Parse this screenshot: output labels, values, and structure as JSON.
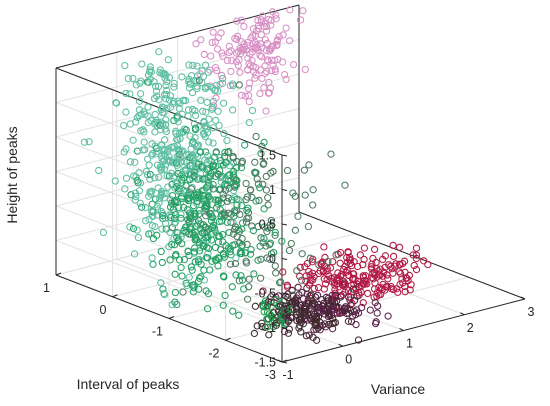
{
  "chart_data": {
    "type": "scatter",
    "projection": "3d",
    "title": "",
    "xlabel": "Variance",
    "ylabel": "Interval of peaks",
    "zlabel": "Height of peaks",
    "xlim": [
      -1,
      3
    ],
    "ylim": [
      -3,
      1
    ],
    "zlim": [
      -1.5,
      1.5
    ],
    "xticks": [
      "-1",
      "0",
      "1",
      "2",
      "3"
    ],
    "yticks": [
      "-3",
      "-2",
      "-1",
      "0",
      "1"
    ],
    "zticks": [
      "-1.5",
      "-1",
      "-0.5",
      "0",
      "0.5",
      "1",
      "1.5"
    ],
    "grid": true,
    "legend": "none",
    "marker": "open-circle",
    "series": [
      {
        "cluster": "upper-cyan-green",
        "color": "#5fbfa2",
        "center": {
          "x": -0.05,
          "y": -0.1,
          "z": 0.45
        },
        "spread": {
          "x": 0.35,
          "y": 0.35,
          "z": 0.75
        },
        "count": 420
      },
      {
        "cluster": "lower-green",
        "color": "#24a063",
        "center": {
          "x": -0.1,
          "y": -0.7,
          "z": -0.35
        },
        "spread": {
          "x": 0.3,
          "y": 0.4,
          "z": 0.55
        },
        "count": 320
      },
      {
        "cluster": "small-green-blob",
        "color": "#1f9d4f",
        "center": {
          "x": -0.6,
          "y": -2.45,
          "z": -1.05
        },
        "spread": {
          "x": 0.1,
          "y": 0.12,
          "z": 0.1
        },
        "count": 30
      },
      {
        "cluster": "pink",
        "color": "#d890c5",
        "center": {
          "x": 2.1,
          "y": 0.85,
          "z": 1.1
        },
        "spread": {
          "x": 0.35,
          "y": 0.1,
          "z": 0.3
        },
        "count": 150
      },
      {
        "cluster": "dark-brown",
        "color": "#3f2a2e",
        "center": {
          "x": 0.1,
          "y": -2.2,
          "z": -1.3
        },
        "spread": {
          "x": 0.3,
          "y": 0.25,
          "z": 0.12
        },
        "count": 130
      },
      {
        "cluster": "purple",
        "color": "#5a2048",
        "center": {
          "x": 0.5,
          "y": -2.1,
          "z": -1.35
        },
        "spread": {
          "x": 0.35,
          "y": 0.25,
          "z": 0.1
        },
        "count": 110
      },
      {
        "cluster": "crimson",
        "color": "#b21a46",
        "center": {
          "x": 1.5,
          "y": -1.6,
          "z": -1.25
        },
        "spread": {
          "x": 0.45,
          "y": 0.35,
          "z": 0.12
        },
        "count": 200
      },
      {
        "cluster": "transition-scatter",
        "color": "#4e7a62",
        "center": {
          "x": 0.35,
          "y": -1.0,
          "z": -0.3
        },
        "spread": {
          "x": 0.3,
          "y": 0.6,
          "z": 0.6
        },
        "count": 140
      }
    ]
  }
}
